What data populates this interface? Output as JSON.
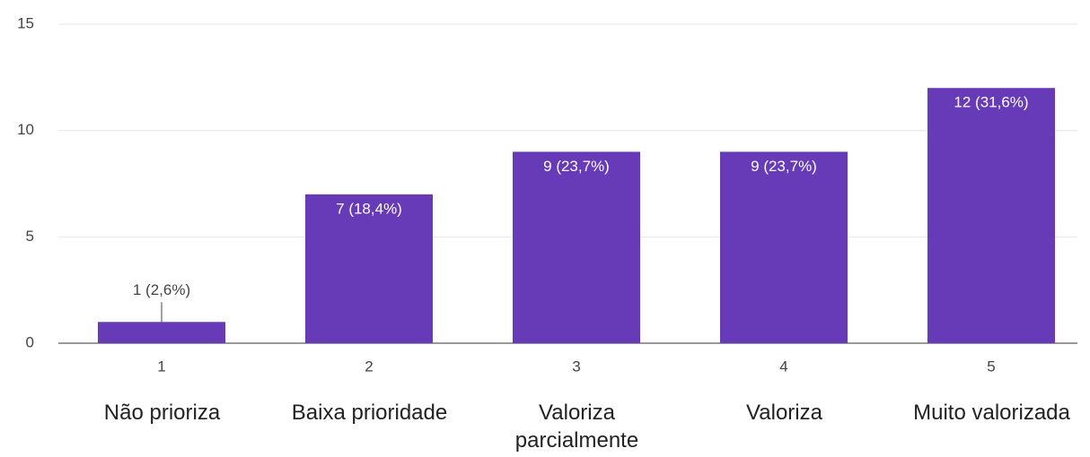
{
  "chart_data": {
    "type": "bar",
    "categories": [
      "1",
      "2",
      "3",
      "4",
      "5"
    ],
    "annotations": [
      "Não prioriza",
      "Baixa prioridade",
      "Valoriza parcialmente",
      "Valoriza",
      "Muito valorizada"
    ],
    "values": [
      1,
      7,
      9,
      9,
      12
    ],
    "value_labels": [
      "1 (2,6%)",
      "7 (18,4%)",
      "9 (23,7%)",
      "9 (23,7%)",
      "12 (31,6%)"
    ],
    "color": "#673ab7",
    "ylim": [
      0,
      15
    ],
    "yticks": [
      0,
      5,
      10,
      15
    ],
    "grid": true
  }
}
